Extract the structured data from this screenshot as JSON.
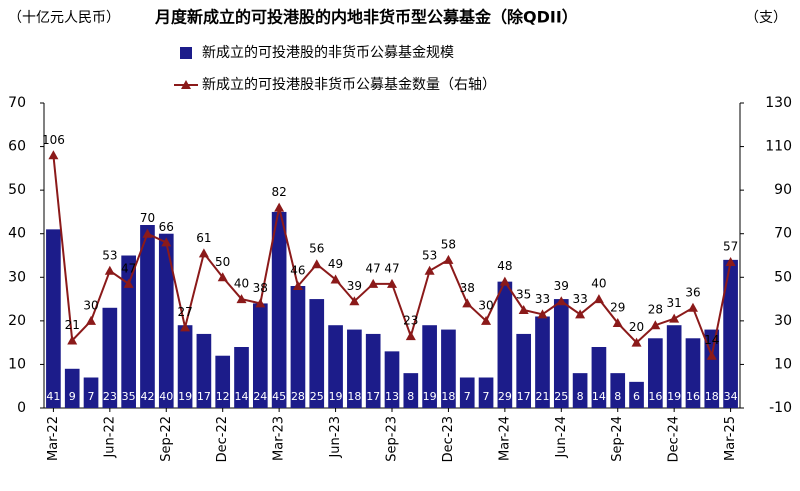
{
  "chart_data": {
    "type": "bar_line",
    "title": "月度新成立的可投港股的内地非货币型公募基金（除QDII）",
    "y_label": "（十亿元人民币）",
    "y2_label": "（支）",
    "categories": [
      "Mar-22",
      null,
      null,
      "Jun-22",
      null,
      null,
      "Sep-22",
      null,
      null,
      "Dec-22",
      null,
      null,
      "Mar-23",
      null,
      null,
      "Jun-23",
      null,
      null,
      "Sep-23",
      null,
      null,
      "Dec-23",
      null,
      null,
      "Mar-24",
      null,
      null,
      "Jun-24",
      null,
      null,
      "Sep-24",
      null,
      null,
      "Dec-24",
      null,
      null,
      "Mar-25"
    ],
    "series": [
      {
        "name": "新成立的可投港股的非货币公募基金规模",
        "type": "bar",
        "color": "#1c1c8a",
        "values": [
          41,
          9,
          7,
          23,
          35,
          42,
          40,
          19,
          17,
          12,
          14,
          24,
          45,
          28,
          25,
          19,
          18,
          17,
          13,
          8,
          19,
          18,
          7,
          7,
          29,
          17,
          21,
          25,
          8,
          14,
          8,
          6,
          16,
          19,
          16,
          18,
          34
        ]
      },
      {
        "name": "新成立的可投港股非货币公募基金数量（右轴）",
        "type": "line",
        "axis": "y2",
        "color": "#8b1a1a",
        "values": [
          106,
          21,
          30,
          53,
          47,
          70,
          66,
          27,
          61,
          50,
          40,
          38,
          82,
          46,
          56,
          49,
          39,
          47,
          47,
          23,
          53,
          58,
          38,
          30,
          48,
          35,
          33,
          39,
          33,
          40,
          29,
          20,
          28,
          31,
          36,
          14,
          57
        ]
      }
    ],
    "ylim": [
      0,
      70
    ],
    "yticks": [
      0,
      10,
      20,
      30,
      40,
      50,
      60,
      70
    ],
    "y2lim": [
      -10,
      130
    ],
    "y2ticks": [
      -10,
      10,
      30,
      50,
      70,
      90,
      110,
      130
    ]
  }
}
